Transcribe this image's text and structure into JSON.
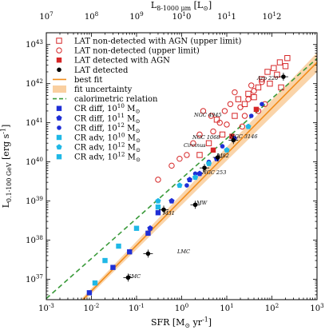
{
  "chart_data": {
    "type": "scatter",
    "top_axis": {
      "label": "L_{8-1000 μm} [L_⊙]",
      "ticks": [
        "10^7",
        "10^8",
        "10^9",
        "10^10",
        "10^11",
        "10^12"
      ]
    },
    "xlabel": "SFR [M_⊙ yr^{-1}]",
    "ylabel": "L_{0.1-100 GeV} [erg s^{-1}]",
    "xscale": "log",
    "yscale": "log",
    "xlim": [
      0.001,
      1000
    ],
    "ylim": [
      3e+36,
      2e+43
    ],
    "x_ticks": [
      "10^{-3}",
      "10^{-2}",
      "10^{-1}",
      "10^{0}",
      "10^{1}",
      "10^{2}",
      "10^{3}"
    ],
    "y_ticks": [
      "10^{37}",
      "10^{38}",
      "10^{39}",
      "10^{40}",
      "10^{41}",
      "10^{42}",
      "10^{43}"
    ],
    "legend_position": "top-left",
    "legend": [
      {
        "label": "LAT non-detected with AGN (upper limit)",
        "marker": "open-square",
        "color": "#d62728"
      },
      {
        "label": "LAT non-detected (upper limit)",
        "marker": "open-circle",
        "color": "#d62728"
      },
      {
        "label": "LAT detected with AGN",
        "marker": "filled-square",
        "color": "#d62728"
      },
      {
        "label": "LAT detected",
        "marker": "filled-circle",
        "color": "#000000"
      },
      {
        "label": "best fit",
        "marker": "line",
        "color": "#f28c1a"
      },
      {
        "label": "fit uncertainty",
        "marker": "band",
        "color": "#f9cfa0"
      },
      {
        "label": "calorimetric relation",
        "marker": "dashed-line",
        "color": "#3a9a3a"
      },
      {
        "label": "CR diff, 10^{10} M_⊙",
        "marker": "filled-square",
        "color": "#1f2fd6"
      },
      {
        "label": "CR diff, 10^{11} M_⊙",
        "marker": "filled-pentagon",
        "color": "#1f2fd6"
      },
      {
        "label": "CR diff, 10^{12} M_⊙",
        "marker": "filled-circle",
        "color": "#1f2fd6"
      },
      {
        "label": "CR adv, 10^{10} M_⊙",
        "marker": "filled-square",
        "color": "#1fb8e6"
      },
      {
        "label": "CR adv, 10^{12} M_⊙",
        "marker": "filled-pentagon",
        "color": "#1fb8e6"
      },
      {
        "label": "CR adv, 10^{12} M_⊙",
        "marker": "filled-square",
        "color": "#1fb8e6"
      }
    ],
    "best_fit": {
      "x_range": [
        0.0063,
        1000
      ],
      "y_range": [
        2.9e+36,
        3.5e+42
      ]
    },
    "calorimetric_relation": {
      "x_range": [
        0.001,
        1000
      ],
      "y_range": [
        3.2e+36,
        4.4e+42
      ]
    },
    "annotations": [
      {
        "text": "Arp 220",
        "color": "#000000"
      },
      {
        "text": "NGC 3146",
        "color": "#000000"
      },
      {
        "text": "M82",
        "color": "#000000"
      },
      {
        "text": "NGC 253",
        "color": "#000000"
      },
      {
        "text": "MW",
        "color": "#000000"
      },
      {
        "text": "M31",
        "color": "#000000"
      },
      {
        "text": "LMC",
        "color": "#000000"
      },
      {
        "text": "SMC",
        "color": "#000000"
      },
      {
        "text": "NGC 4945",
        "color": "#d62728"
      },
      {
        "text": "NGC 1068",
        "color": "#d62728"
      },
      {
        "text": "Circinus",
        "color": "#d62728"
      }
    ],
    "series": [
      {
        "name": "LAT detected",
        "marker": "filled-circle",
        "color": "#000000",
        "points": [
          [
            0.065,
            1.1e+37
          ],
          [
            0.18,
            4.5e+37
          ],
          [
            2.0,
            8e+38
          ],
          [
            0.4,
            6e+38
          ],
          [
            3.2,
            7e+39
          ],
          [
            6.3,
            1.3e+40
          ],
          [
            14,
            3.6e+40
          ],
          [
            180,
            1.5e+42
          ]
        ]
      },
      {
        "name": "LAT non-detected (upper limit)",
        "marker": "open-circle",
        "color": "#d62728",
        "points": [
          [
            0.3,
            3.5e+39
          ],
          [
            0.6,
            8e+39
          ],
          [
            0.9,
            1.2e+40
          ],
          [
            1.3,
            1.5e+40
          ],
          [
            1.8,
            3e+40
          ],
          [
            2.5,
            5e+40
          ],
          [
            3.0,
            2e+41
          ],
          [
            4.5,
            1.5e+41
          ],
          [
            5.0,
            6e+40
          ],
          [
            7.0,
            1e+41
          ],
          [
            9.0,
            2e+41
          ],
          [
            12,
            3e+41
          ],
          [
            15,
            6e+41
          ],
          [
            20,
            2.5e+41
          ],
          [
            25,
            1.5e+41
          ],
          [
            30,
            4e+41
          ],
          [
            35,
            9e+41
          ],
          [
            40,
            6.5e+41
          ],
          [
            50,
            2e+41
          ],
          [
            60,
            1.1e+42
          ],
          [
            70,
            3e+41
          ],
          [
            10,
            9e+40
          ],
          [
            22,
            8e+40
          ]
        ]
      },
      {
        "name": "LAT non-detected with AGN (upper limit)",
        "marker": "open-square",
        "color": "#d62728",
        "points": [
          [
            2.5,
            1.5e+40
          ],
          [
            4.0,
            3e+40
          ],
          [
            6.0,
            1.2e+41
          ],
          [
            8.0,
            5e+40
          ],
          [
            15,
            1.5e+41
          ],
          [
            18,
            4e+41
          ],
          [
            25,
            3e+41
          ],
          [
            30,
            5.5e+41
          ],
          [
            40,
            4.5e+41
          ],
          [
            50,
            8e+41
          ],
          [
            60,
            1.3e+42
          ],
          [
            80,
            2e+42
          ],
          [
            90,
            1e+42
          ],
          [
            110,
            2.5e+42
          ],
          [
            130,
            1.7e+42
          ],
          [
            150,
            3.5e+42
          ],
          [
            160,
            8e+41
          ],
          [
            200,
            2.8e+42
          ],
          [
            220,
            4.5e+42
          ]
        ]
      },
      {
        "name": "LAT detected with AGN",
        "marker": "filled-square",
        "color": "#d62728",
        "points": [
          [
            5.0,
            2e+40
          ],
          [
            13,
            4.5e+40
          ],
          [
            45,
            2.2e+41
          ]
        ]
      },
      {
        "name": "CR diff, 10^{10} M_⊙",
        "marker": "filled-square",
        "color": "#1f2fd6",
        "points": [
          [
            0.009,
            4.5e+36
          ],
          [
            0.03,
            2e+37
          ],
          [
            0.07,
            5e+37
          ],
          [
            0.18,
            1.5e+38
          ],
          [
            0.3,
            5e+38
          ]
        ]
      },
      {
        "name": "CR diff, 10^{11} M_⊙",
        "marker": "filled-pentagon",
        "color": "#1f2fd6",
        "points": [
          [
            0.2,
            2e+38
          ],
          [
            0.6,
            1e+39
          ],
          [
            1.5,
            3.5e+39
          ],
          [
            2.5,
            5e+39
          ],
          [
            6.0,
            1.2e+40
          ]
        ]
      },
      {
        "name": "CR diff, 10^{12} M_⊙",
        "marker": "filled-circle",
        "color": "#1f2fd6",
        "points": [
          [
            1.3,
            2.5e+39
          ],
          [
            2.0,
            5e+39
          ],
          [
            4.0,
            1e+40
          ],
          [
            8.0,
            2.5e+40
          ],
          [
            15,
            4e+40
          ],
          [
            35,
            1.5e+41
          ],
          [
            60,
            3e+41
          ]
        ]
      },
      {
        "name": "CR adv, 10^{10} M_⊙",
        "marker": "filled-square",
        "color": "#1fb8e6",
        "points": [
          [
            0.012,
            8e+36
          ],
          [
            0.02,
            3e+37
          ],
          [
            0.04,
            7e+37
          ],
          [
            0.1,
            2e+38
          ],
          [
            0.3,
            7e+38
          ]
        ]
      },
      {
        "name": "CR adv, 10^{12} M_⊙",
        "marker": "filled-pentagon",
        "color": "#1fb8e6",
        "points": [
          [
            0.3,
            1e+39
          ],
          [
            0.9,
            2.5e+39
          ],
          [
            2.0,
            4e+39
          ],
          [
            4.0,
            9e+39
          ],
          [
            10,
            2e+40
          ],
          [
            30,
            8e+40
          ]
        ]
      }
    ]
  }
}
